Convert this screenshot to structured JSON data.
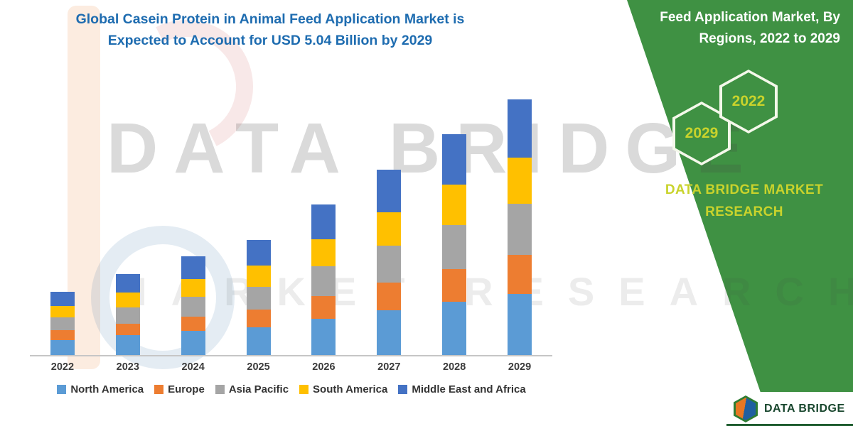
{
  "title": {
    "line1": "Global Casein Protein in Animal Feed Application Market is",
    "line2": "Expected to Account for USD 5.04 Billion by 2029"
  },
  "watermark": {
    "line1": "DATA BRIDGE",
    "line2": "MARKET RESEARCH"
  },
  "side_panel": {
    "heading_line1": "Feed Application Market, By",
    "heading_line2": "Regions, 2022 to 2029",
    "hex_back_year": "2029",
    "hex_front_year": "2022",
    "brand_line1": "DATA BRIDGE MARKET",
    "brand_line2": "RESEARCH",
    "green": "#3F9143",
    "yellow": "#C9D32C"
  },
  "footer_logo": {
    "text": "DATA BRIDGE"
  },
  "chart_data": {
    "type": "bar",
    "stacked": true,
    "title": "Global Casein Protein in Animal Feed Application Market, USD 5.04 Billion by 2029",
    "xlabel": "",
    "ylabel": "",
    "unit": "USD Billion (estimated from bar heights)",
    "ylim": [
      0,
      5.5
    ],
    "grid": false,
    "legend_position": "bottom",
    "categories": [
      "2022",
      "2023",
      "2024",
      "2025",
      "2026",
      "2027",
      "2028",
      "2029"
    ],
    "series": [
      {
        "name": "North America",
        "color": "#5B9BD5",
        "values": [
          0.3,
          0.39,
          0.47,
          0.55,
          0.72,
          0.88,
          1.05,
          1.21
        ]
      },
      {
        "name": "Europe",
        "color": "#ED7D31",
        "values": [
          0.19,
          0.23,
          0.29,
          0.34,
          0.44,
          0.55,
          0.65,
          0.76
        ]
      },
      {
        "name": "Asia Pacific",
        "color": "#A5A5A5",
        "values": [
          0.25,
          0.32,
          0.39,
          0.46,
          0.59,
          0.73,
          0.87,
          1.01
        ]
      },
      {
        "name": "South America",
        "color": "#FFC000",
        "values": [
          0.22,
          0.29,
          0.35,
          0.41,
          0.54,
          0.66,
          0.79,
          0.91
        ]
      },
      {
        "name": "Middle East and Africa",
        "color": "#4472C4",
        "values": [
          0.28,
          0.36,
          0.44,
          0.51,
          0.68,
          0.83,
          0.99,
          1.15
        ]
      }
    ],
    "totals": [
      1.24,
      1.59,
      1.94,
      2.27,
      2.97,
      3.65,
      4.35,
      5.04
    ]
  }
}
